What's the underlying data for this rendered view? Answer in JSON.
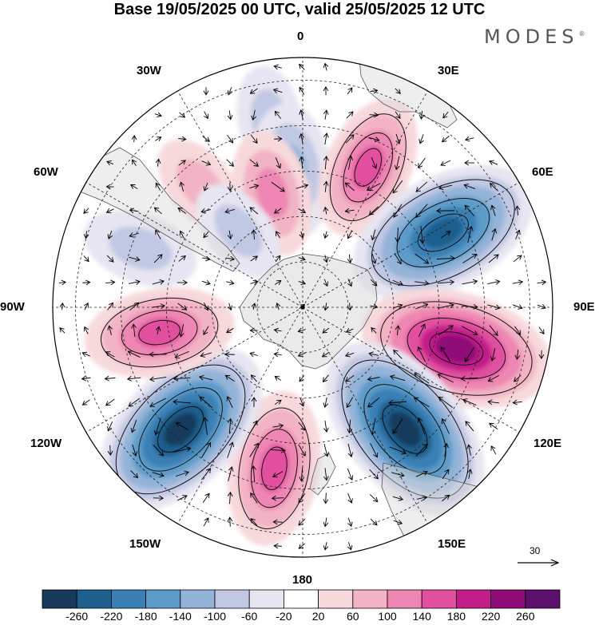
{
  "title": "Base 19/05/2025 00 UTC, valid 25/05/2025 12 UTC",
  "brand": {
    "name": "MODES",
    "mark": "®"
  },
  "projection": "south-polar-stereographic",
  "longitude_labels": {
    "top": "0",
    "top_right": "30E",
    "right_upper": "60E",
    "right": "90E",
    "right_lower": "120E",
    "bottom_right": "150E",
    "bottom": "180",
    "bottom_left": "150W",
    "left_lower": "120W",
    "left": "90W",
    "left_upper": "60W",
    "top_left": "30W"
  },
  "reference_vector": {
    "value": "30"
  },
  "colorbar": {
    "ticks": [
      "-260",
      "-220",
      "-180",
      "-140",
      "-100",
      "-60",
      "-20",
      "20",
      "60",
      "100",
      "140",
      "180",
      "220",
      "260"
    ],
    "colors": [
      "#173a5b",
      "#1f5f8e",
      "#3a80b4",
      "#5d9bc9",
      "#93b3d8",
      "#c1c8e3",
      "#e6e5f1",
      "#ffffff",
      "#f7d9dc",
      "#f2b4c4",
      "#ee86b3",
      "#e14f9e",
      "#c21e8a",
      "#8f0c79",
      "#5b116b"
    ]
  },
  "anomalies": [
    {
      "name": "south-atlantic-low",
      "lon": -10,
      "lat": -48,
      "value": -60
    },
    {
      "name": "atlantic-high-west",
      "lon": -40,
      "lat": -55,
      "value": 60
    },
    {
      "name": "atlantic-low-small",
      "lon": -5,
      "lat": -60,
      "value": -120
    },
    {
      "name": "atlantic-high-small",
      "lon": -15,
      "lat": -64,
      "value": 100
    },
    {
      "name": "africa-high",
      "lon": 25,
      "lat": -56,
      "value": 140
    },
    {
      "name": "indian-low-1",
      "lon": 62,
      "lat": -55,
      "value": -240
    },
    {
      "name": "indian-high",
      "lon": 105,
      "lat": -55,
      "value": 240
    },
    {
      "name": "aus-low",
      "lon": 140,
      "lat": -55,
      "value": -260
    },
    {
      "name": "tasman-high",
      "lon": -170,
      "lat": -54,
      "value": 160
    },
    {
      "name": "pacific-low",
      "lon": -135,
      "lat": -52,
      "value": -250
    },
    {
      "name": "pacific-high",
      "lon": -100,
      "lat": -58,
      "value": 150
    },
    {
      "name": "chile-low",
      "lon": -70,
      "lat": -52,
      "value": -80
    },
    {
      "name": "weddell-low",
      "lon": -40,
      "lat": -68,
      "value": -60
    }
  ]
}
